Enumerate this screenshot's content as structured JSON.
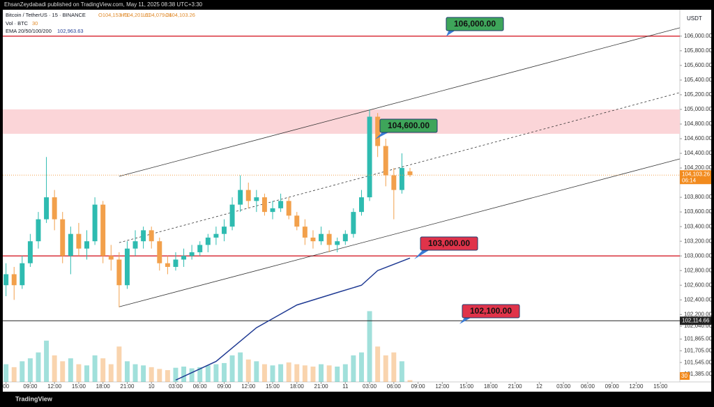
{
  "chart_data": {
    "type": "candlestick",
    "publisher": "EhsanZeydabadi published on TradingView.com, May 11, 2025 08:38 UTC+3:30",
    "symbol": "Bitcoin / TetherUS · 15 · BINANCE",
    "ohlc_text": [
      "O104,153.71",
      "H104,201.61",
      "L104,079.36",
      "C104,103.26"
    ],
    "volume_legend": "Vol · BTC",
    "volume_legend_value": "30",
    "ema_legend": "EMA 20/50/100/200",
    "ema_legend_value": "102,963.63",
    "currency": "USDT",
    "brand": "TradingView",
    "up_color": "#2ebbb0",
    "down_color": "#f2a04b",
    "ema_color": "#1f3a93",
    "x": [
      0,
      1,
      2,
      3,
      4,
      5,
      6,
      7,
      8,
      9,
      10,
      11,
      12,
      13,
      14,
      15,
      16,
      17,
      18,
      19,
      20,
      21,
      22,
      23,
      24,
      25,
      26,
      27,
      28,
      29,
      30,
      31,
      32,
      33,
      34,
      35,
      36,
      37,
      38,
      39,
      40,
      41,
      42,
      43,
      44,
      45,
      46,
      47,
      48,
      49,
      50
    ],
    "open": [
      102600,
      102750,
      102600,
      102900,
      103200,
      103500,
      103800,
      103500,
      103000,
      103300,
      103100,
      103200,
      103700,
      103000,
      102950,
      102600,
      103100,
      103200,
      103350,
      103200,
      102900,
      102850,
      102950,
      103000,
      103050,
      103150,
      103250,
      103300,
      103400,
      103700,
      103900,
      103750,
      103800,
      103600,
      103650,
      103750,
      103550,
      103400,
      103250,
      103200,
      103300,
      103150,
      103200,
      103300,
      103600,
      103800,
      104900,
      104500,
      104100,
      103900,
      104153.71
    ],
    "high": [
      102900,
      102850,
      103000,
      103300,
      103600,
      104350,
      103900,
      103600,
      103400,
      103450,
      103350,
      103800,
      103750,
      103150,
      103050,
      103200,
      103350,
      103400,
      103400,
      103250,
      103000,
      103050,
      103100,
      103150,
      103200,
      103300,
      103400,
      103500,
      103800,
      104100,
      104000,
      103900,
      103850,
      103750,
      103850,
      103800,
      103600,
      103500,
      103350,
      103400,
      103350,
      103250,
      103350,
      103650,
      103900,
      105000,
      104950,
      104600,
      104200,
      104400,
      104201.61
    ],
    "low": [
      102450,
      102400,
      102550,
      102850,
      103100,
      103450,
      103350,
      102900,
      102750,
      103000,
      102950,
      103150,
      102900,
      102800,
      102300,
      102550,
      103000,
      103100,
      103100,
      102800,
      102750,
      102800,
      102850,
      102950,
      103000,
      103050,
      103150,
      103200,
      103350,
      103600,
      103650,
      103600,
      103550,
      103500,
      103600,
      103500,
      103350,
      103150,
      103100,
      103150,
      103050,
      103050,
      103150,
      103250,
      103550,
      103750,
      104350,
      103950,
      103500,
      103850,
      104079.36
    ],
    "close": [
      102750,
      102600,
      102900,
      103200,
      103500,
      103800,
      103500,
      103000,
      103300,
      103100,
      103200,
      103700,
      103000,
      102950,
      102600,
      103100,
      103200,
      103350,
      103200,
      102900,
      102850,
      102950,
      103000,
      103050,
      103150,
      103250,
      103300,
      103400,
      103700,
      103900,
      103750,
      103800,
      103600,
      103650,
      103750,
      103550,
      103400,
      103250,
      103200,
      103300,
      103150,
      103200,
      103300,
      103600,
      103800,
      104900,
      104500,
      104100,
      103900,
      104200,
      104103.26
    ],
    "volume": [
      300,
      250,
      350,
      400,
      500,
      700,
      450,
      350,
      400,
      300,
      280,
      450,
      400,
      300,
      600,
      350,
      300,
      280,
      250,
      220,
      200,
      240,
      260,
      230,
      250,
      280,
      300,
      320,
      450,
      500,
      380,
      350,
      300,
      280,
      300,
      330,
      300,
      280,
      260,
      300,
      280,
      260,
      300,
      450,
      500,
      1200,
      600,
      450,
      500,
      350,
      30
    ],
    "volume_lim": [
      0,
      1300
    ],
    "ema_x": [
      21,
      26,
      31,
      36,
      41,
      44,
      46,
      50
    ],
    "ema_values": [
      101305,
      101560,
      102020,
      102330,
      102500,
      102600,
      102800,
      102970
    ],
    "xlim": [
      -0.4,
      83.4
    ],
    "xticks": [
      {
        "value": 0,
        "label": "00"
      },
      {
        "value": 3,
        "label": "09:00"
      },
      {
        "value": 6,
        "label": "12:00"
      },
      {
        "value": 9,
        "label": "15:00"
      },
      {
        "value": 12,
        "label": "18:00"
      },
      {
        "value": 15,
        "label": "21:00"
      },
      {
        "value": 18,
        "label": "10"
      },
      {
        "value": 21,
        "label": "03:00"
      },
      {
        "value": 24,
        "label": "06:00"
      },
      {
        "value": 27,
        "label": "09:00"
      },
      {
        "value": 30,
        "label": "12:00"
      },
      {
        "value": 33,
        "label": "15:00"
      },
      {
        "value": 36,
        "label": "18:00"
      },
      {
        "value": 39,
        "label": "21:00"
      },
      {
        "value": 42,
        "label": "11"
      },
      {
        "value": 45,
        "label": "03:00"
      },
      {
        "value": 48,
        "label": "06:00"
      },
      {
        "value": 51,
        "label": "09:00"
      },
      {
        "value": 54,
        "label": "12:00"
      },
      {
        "value": 57,
        "label": "15:00"
      },
      {
        "value": 60,
        "label": "18:00"
      },
      {
        "value": 63,
        "label": "21:00"
      },
      {
        "value": 66,
        "label": "12"
      },
      {
        "value": 69,
        "label": "03:00"
      },
      {
        "value": 72,
        "label": "06:00"
      },
      {
        "value": 75,
        "label": "09:00"
      },
      {
        "value": 78,
        "label": "12:00"
      },
      {
        "value": 81,
        "label": "15:00"
      }
    ],
    "ylim": [
      101280,
      106360
    ],
    "yticks": [
      {
        "value": 106000,
        "label": "106,000.00"
      },
      {
        "value": 105800,
        "label": "105,800.00"
      },
      {
        "value": 105600,
        "label": "105,600.00"
      },
      {
        "value": 105400,
        "label": "105,400.00"
      },
      {
        "value": 105200,
        "label": "105,200.00"
      },
      {
        "value": 105000,
        "label": "105,000.00"
      },
      {
        "value": 104800,
        "label": "104,800.00"
      },
      {
        "value": 104600,
        "label": "104,600.00"
      },
      {
        "value": 104400,
        "label": "104,400.00"
      },
      {
        "value": 104200,
        "label": "104,200.00"
      },
      {
        "value": 103800,
        "label": "103,800.00"
      },
      {
        "value": 103600,
        "label": "103,600.00"
      },
      {
        "value": 103400,
        "label": "103,400.00"
      },
      {
        "value": 103200,
        "label": "103,200.00"
      },
      {
        "value": 103000,
        "label": "103,000.00"
      },
      {
        "value": 102800,
        "label": "102,800.00"
      },
      {
        "value": 102600,
        "label": "102,600.00"
      },
      {
        "value": 102400,
        "label": "102,400.00"
      },
      {
        "value": 102200,
        "label": "102,200.00"
      },
      {
        "value": 102040,
        "label": "102,040.00"
      },
      {
        "value": 101865,
        "label": "101,865.00"
      },
      {
        "value": 101705,
        "label": "101,705.00"
      },
      {
        "value": 101545,
        "label": "101,545.00"
      },
      {
        "value": 101385,
        "label": "101,385.00"
      }
    ],
    "zone": {
      "low": 104667,
      "high": 105000,
      "color": "#fbd5d8"
    },
    "levels": [
      {
        "value": 106000,
        "color": "#d9323c"
      },
      {
        "value": 103000,
        "color": "#d9323c"
      },
      {
        "value": 102114.66,
        "color": "#222",
        "label": "102,114.66"
      }
    ],
    "last_price": {
      "value": 104103.26,
      "label": "104,103.26"
    },
    "countdown": "06:14",
    "trendlines": [
      {
        "x": [
          14,
          83.4
        ],
        "values": [
          104086,
          106114
        ],
        "dash": false
      },
      {
        "x": [
          14,
          83.4
        ],
        "values": [
          102305,
          104324
        ],
        "dash": false
      },
      {
        "x": [
          14,
          83.4
        ],
        "values": [
          103181,
          105229
        ],
        "dash": true
      }
    ],
    "callouts": [
      {
        "label": "106,000.00",
        "color": "#3ea55a"
      },
      {
        "label": "104,600.00",
        "color": "#3ea55a"
      },
      {
        "label": "103,000.00",
        "color": "#e0334a"
      },
      {
        "label": "102,100.00",
        "color": "#e0334a"
      }
    ]
  }
}
